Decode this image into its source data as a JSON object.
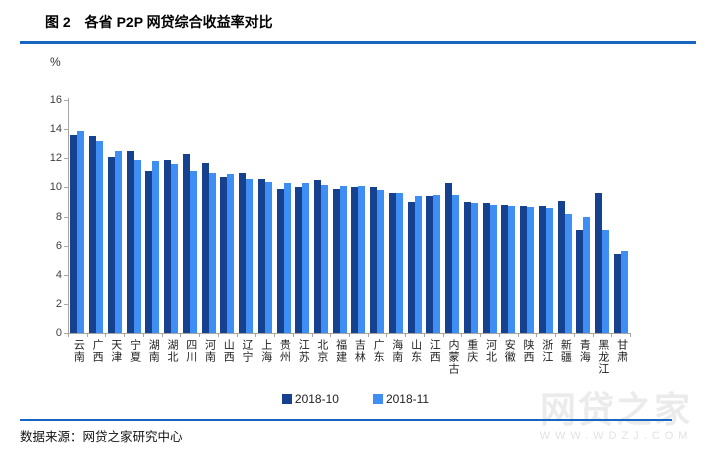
{
  "title": "图 2　各省 P2P 网贷综合收益率对比",
  "ylabel_unit": "%",
  "footer": {
    "source": "数据来源：网贷之家研究中心"
  },
  "watermark": {
    "brand": "网贷之家",
    "url": "WWW.WDZJ.COM"
  },
  "colors": {
    "rule_blue": "#1765C1",
    "axis_gray": "#a6a6a6",
    "series_2018_10": "#15418F",
    "series_2018_11": "#3E8EF4",
    "watermark_gray": "#ebebeb"
  },
  "chart_data": {
    "type": "bar",
    "title": "各省 P2P 网贷综合收益率对比",
    "xlabel": "",
    "ylabel": "%",
    "ylim": [
      0,
      16
    ],
    "yticks": [
      0,
      2,
      4,
      6,
      8,
      10,
      12,
      14,
      16
    ],
    "grid": false,
    "legend_position": "bottom",
    "categories": [
      "云南",
      "广西",
      "天津",
      "宁夏",
      "湖南",
      "湖北",
      "四川",
      "河南",
      "山西",
      "辽宁",
      "上海",
      "贵州",
      "江苏",
      "北京",
      "福建",
      "吉林",
      "广东",
      "海南",
      "山东",
      "江西",
      "内蒙古",
      "重庆",
      "河北",
      "安徽",
      "陕西",
      "浙江",
      "新疆",
      "青海",
      "黑龙江",
      "甘肃"
    ],
    "series": [
      {
        "name": "2018-10",
        "color": "#15418F",
        "values": [
          13.6,
          13.5,
          12.1,
          12.5,
          11.1,
          11.9,
          12.3,
          11.7,
          10.7,
          11.0,
          10.6,
          9.9,
          10.0,
          10.5,
          9.9,
          10.0,
          10.0,
          9.65,
          9.0,
          9.4,
          10.3,
          9.0,
          8.9,
          8.8,
          8.75,
          8.7,
          9.05,
          7.1,
          9.65,
          5.45
        ]
      },
      {
        "name": "2018-11",
        "color": "#3E8EF4",
        "values": [
          13.9,
          13.2,
          12.5,
          11.9,
          11.8,
          11.6,
          11.1,
          11.0,
          10.9,
          10.6,
          10.4,
          10.3,
          10.3,
          10.2,
          10.1,
          10.1,
          9.8,
          9.6,
          9.4,
          9.5,
          9.45,
          8.9,
          8.8,
          8.75,
          8.65,
          8.6,
          8.15,
          7.95,
          7.05,
          5.6
        ]
      }
    ]
  }
}
